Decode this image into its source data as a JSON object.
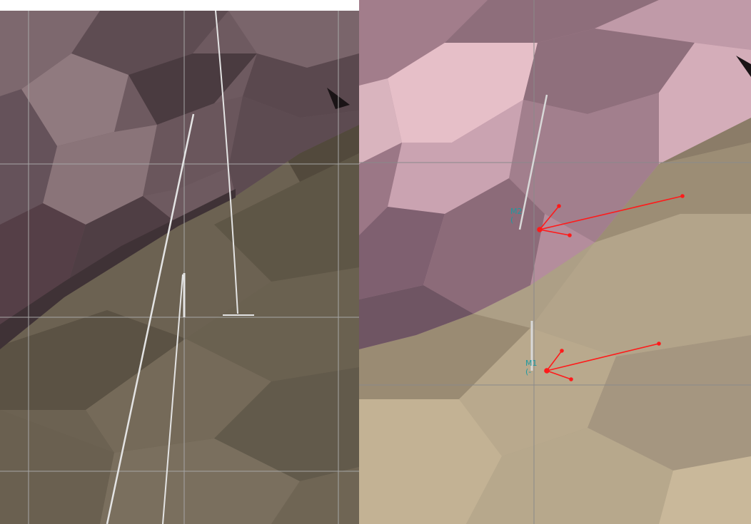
{
  "viewports": {
    "left": {
      "colors": {
        "rock_dark": "#4a3b40",
        "rock_mid": "#6e5a60",
        "rock_light": "#907a7f",
        "soil_dark": "#4f463a",
        "soil_mid": "#6c6252",
        "soil_light": "#7a7060",
        "grid": "#a6a6a6",
        "boreholes": "#e4e4e4"
      }
    },
    "right": {
      "colors": {
        "rock_dark": "#8e6e7b",
        "rock_mid": "#b48d9c",
        "rock_light": "#e6bfc8",
        "soil_dark": "#8b7c68",
        "soil_mid": "#ad9f86",
        "soil_light": "#c9b89a",
        "grid": "#8a8a8a",
        "boreholes": "#d8d8d8",
        "vectors": "#ff1a1a",
        "label_color": "#1e9aa0"
      },
      "markers": [
        {
          "id": "M2",
          "label": "M2",
          "sublabel": "("
        },
        {
          "id": "M1",
          "label": "M1",
          "sublabel": "(-"
        }
      ]
    }
  }
}
